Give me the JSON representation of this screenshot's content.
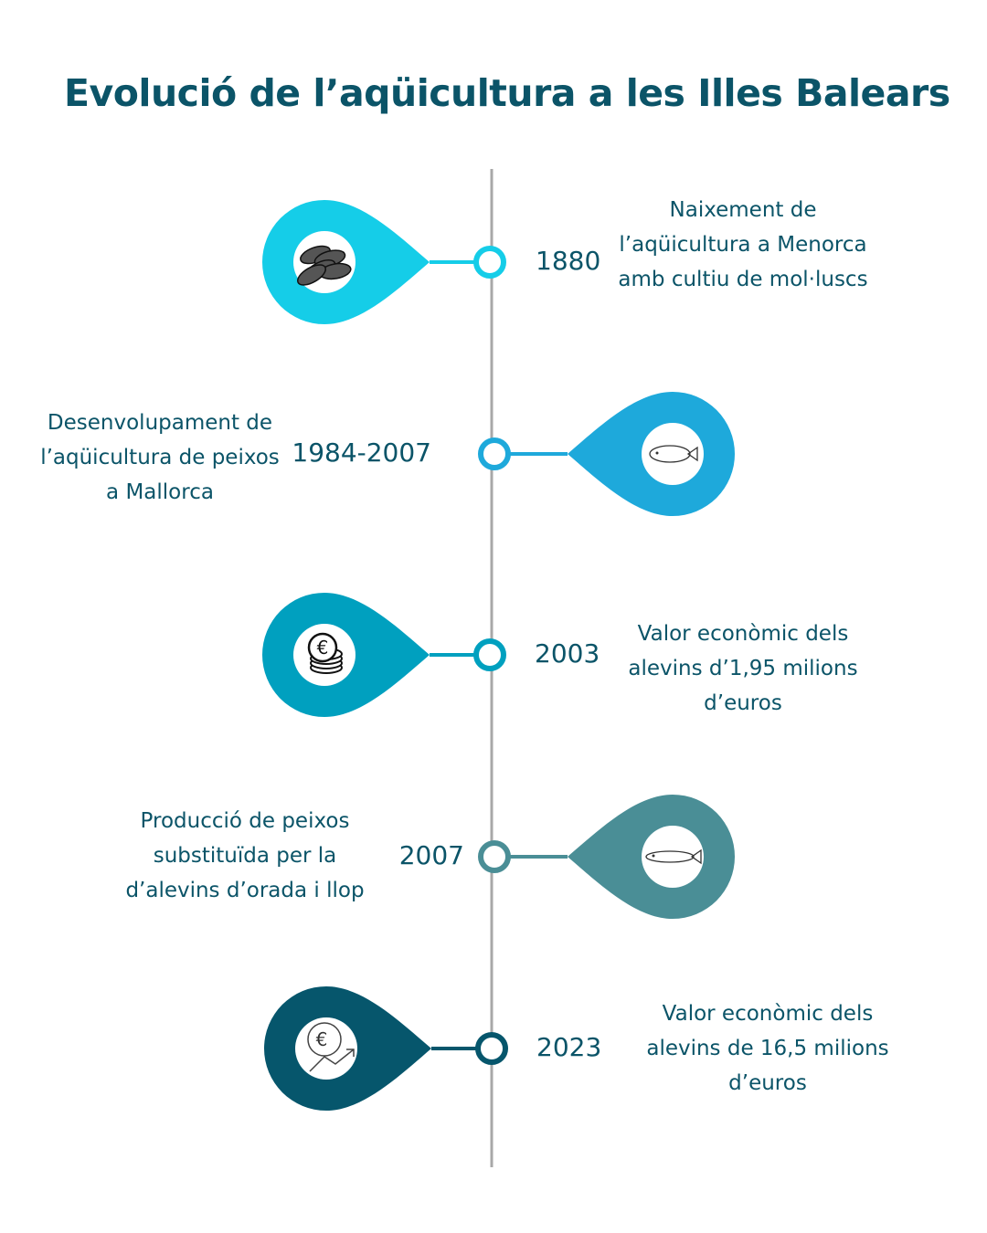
{
  "title": "Evolució de l’aqüicultura a les Illes Balears",
  "timeline_color": "#a8a8a8",
  "text_color": "#0b5468",
  "events": [
    {
      "year": "1880",
      "text": "Naixement de l’aqüicultura a Menorca amb cultiu de mol·luscs",
      "color": "#15cde8",
      "icon": "mussels-icon",
      "side": "left"
    },
    {
      "year": "1984-2007",
      "text": "Desenvolupament de l’aqüicultura de peixos a Mallorca",
      "color": "#1ea9db",
      "icon": "fish-icon",
      "side": "right"
    },
    {
      "year": "2003",
      "text": "Valor econòmic dels alevins d’1,95 milions d’euros",
      "color": "#00a0bf",
      "icon": "euro-coins-icon",
      "side": "left"
    },
    {
      "year": "2007",
      "text": "Producció de peixos substituïda per la d’alevins d’orada i llop",
      "color": "#4a8e96",
      "icon": "small-fish-icon",
      "side": "right"
    },
    {
      "year": "2023",
      "text": "Valor econòmic dels alevins de 16,5 milions d’euros",
      "color": "#06566c",
      "icon": "euro-growth-icon",
      "side": "left"
    }
  ]
}
